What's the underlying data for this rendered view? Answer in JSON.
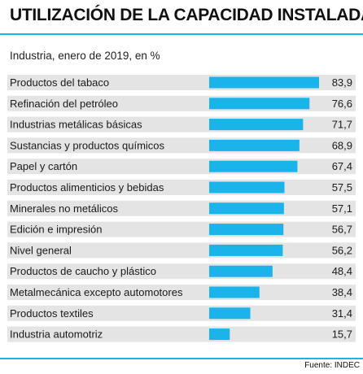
{
  "title": "UTILIZACIÓN DE LA CAPACIDAD INSTALADA",
  "subtitle": "Industria, enero de 2019, en %",
  "source": "Fuente: INDEC",
  "colors": {
    "bar": "#1ab4ea",
    "stripe": "#e4e4e4",
    "accent": "#1ab4ea"
  },
  "chart_data": {
    "type": "bar",
    "orientation": "horizontal",
    "categories": [
      "Productos del tabaco",
      "Refinación del petróleo",
      "Industrias metálicas básicas",
      "Sustancias y productos químicos",
      "Papel y cartón",
      "Productos alimenticios y bebidas",
      "Minerales no metálicos",
      "Edición e impresión",
      "Nivel general",
      "Productos de caucho y plástico",
      "Metalmecánica excepto automotores",
      "Productos textiles",
      "Industria automotriz"
    ],
    "values": [
      83.9,
      76.6,
      71.7,
      68.9,
      67.4,
      57.5,
      57.1,
      56.7,
      56.2,
      48.4,
      38.4,
      31.4,
      15.7
    ],
    "value_labels": [
      "83,9",
      "76,6",
      "71,7",
      "68,9",
      "67,4",
      "57,5",
      "57,1",
      "56,7",
      "56,2",
      "48,4",
      "38,4",
      "31,4",
      "15,7"
    ],
    "xlim": [
      0,
      83.9
    ],
    "grid": false
  }
}
